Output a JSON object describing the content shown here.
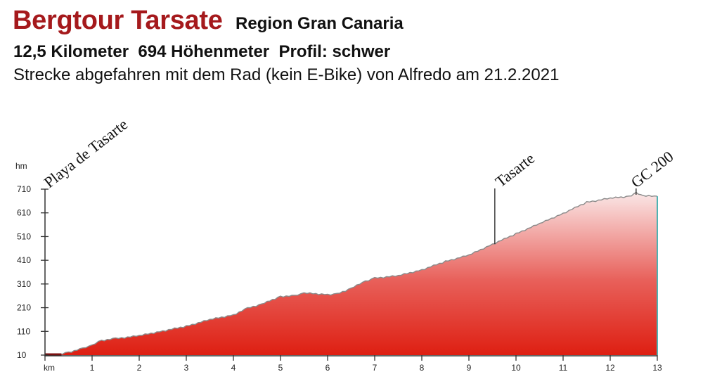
{
  "header": {
    "title": "Bergtour Tarsate",
    "region": "Region Gran Canaria",
    "stats": "12,5 Kilometer  694 Höhenmeter  Profil: schwer",
    "subtitle": "Strecke abgefahren mit dem Rad (kein E-Bike) von Alfredo am 21.2.2021"
  },
  "colors": {
    "title": "#a5191c",
    "fill_top": "#fbecec",
    "fill_mid": "#e8605a",
    "fill_bottom": "#de1f12",
    "profile_line": "#8a8a8a",
    "end_line": "#4fb3b3",
    "axis": "#333333"
  },
  "chart_data": {
    "type": "area",
    "title": "Bergtour Tarsate",
    "xlabel": "km",
    "ylabel": "hm",
    "x_ticks": [
      1,
      2,
      3,
      4,
      5,
      6,
      7,
      8,
      9,
      10,
      11,
      12,
      13
    ],
    "y_ticks": [
      10,
      110,
      210,
      310,
      410,
      510,
      610,
      710
    ],
    "xlim": [
      0,
      13
    ],
    "ylim": [
      10,
      710
    ],
    "grid": false,
    "legend": "none",
    "x": [
      0,
      0.3,
      0.5,
      0.8,
      1.0,
      1.2,
      1.5,
      2.0,
      2.5,
      3.0,
      3.5,
      4.0,
      4.3,
      4.6,
      5.0,
      5.3,
      5.5,
      6.0,
      6.2,
      6.5,
      6.8,
      7.0,
      7.5,
      8.0,
      8.5,
      9.0,
      9.5,
      10.0,
      10.5,
      11.0,
      11.5,
      12.0,
      12.4,
      12.55,
      12.7,
      13.0
    ],
    "values": [
      10,
      12,
      22,
      38,
      52,
      72,
      80,
      92,
      112,
      132,
      160,
      180,
      208,
      225,
      258,
      260,
      272,
      266,
      268,
      292,
      322,
      335,
      345,
      370,
      405,
      432,
      478,
      522,
      565,
      608,
      655,
      672,
      680,
      694,
      682,
      680
    ],
    "annotations": [
      {
        "label": "Playa de Tasarte",
        "x": 0
      },
      {
        "label": "Tasarte",
        "x": 9.55
      },
      {
        "label": "GC 200",
        "x": 12.55
      }
    ]
  }
}
